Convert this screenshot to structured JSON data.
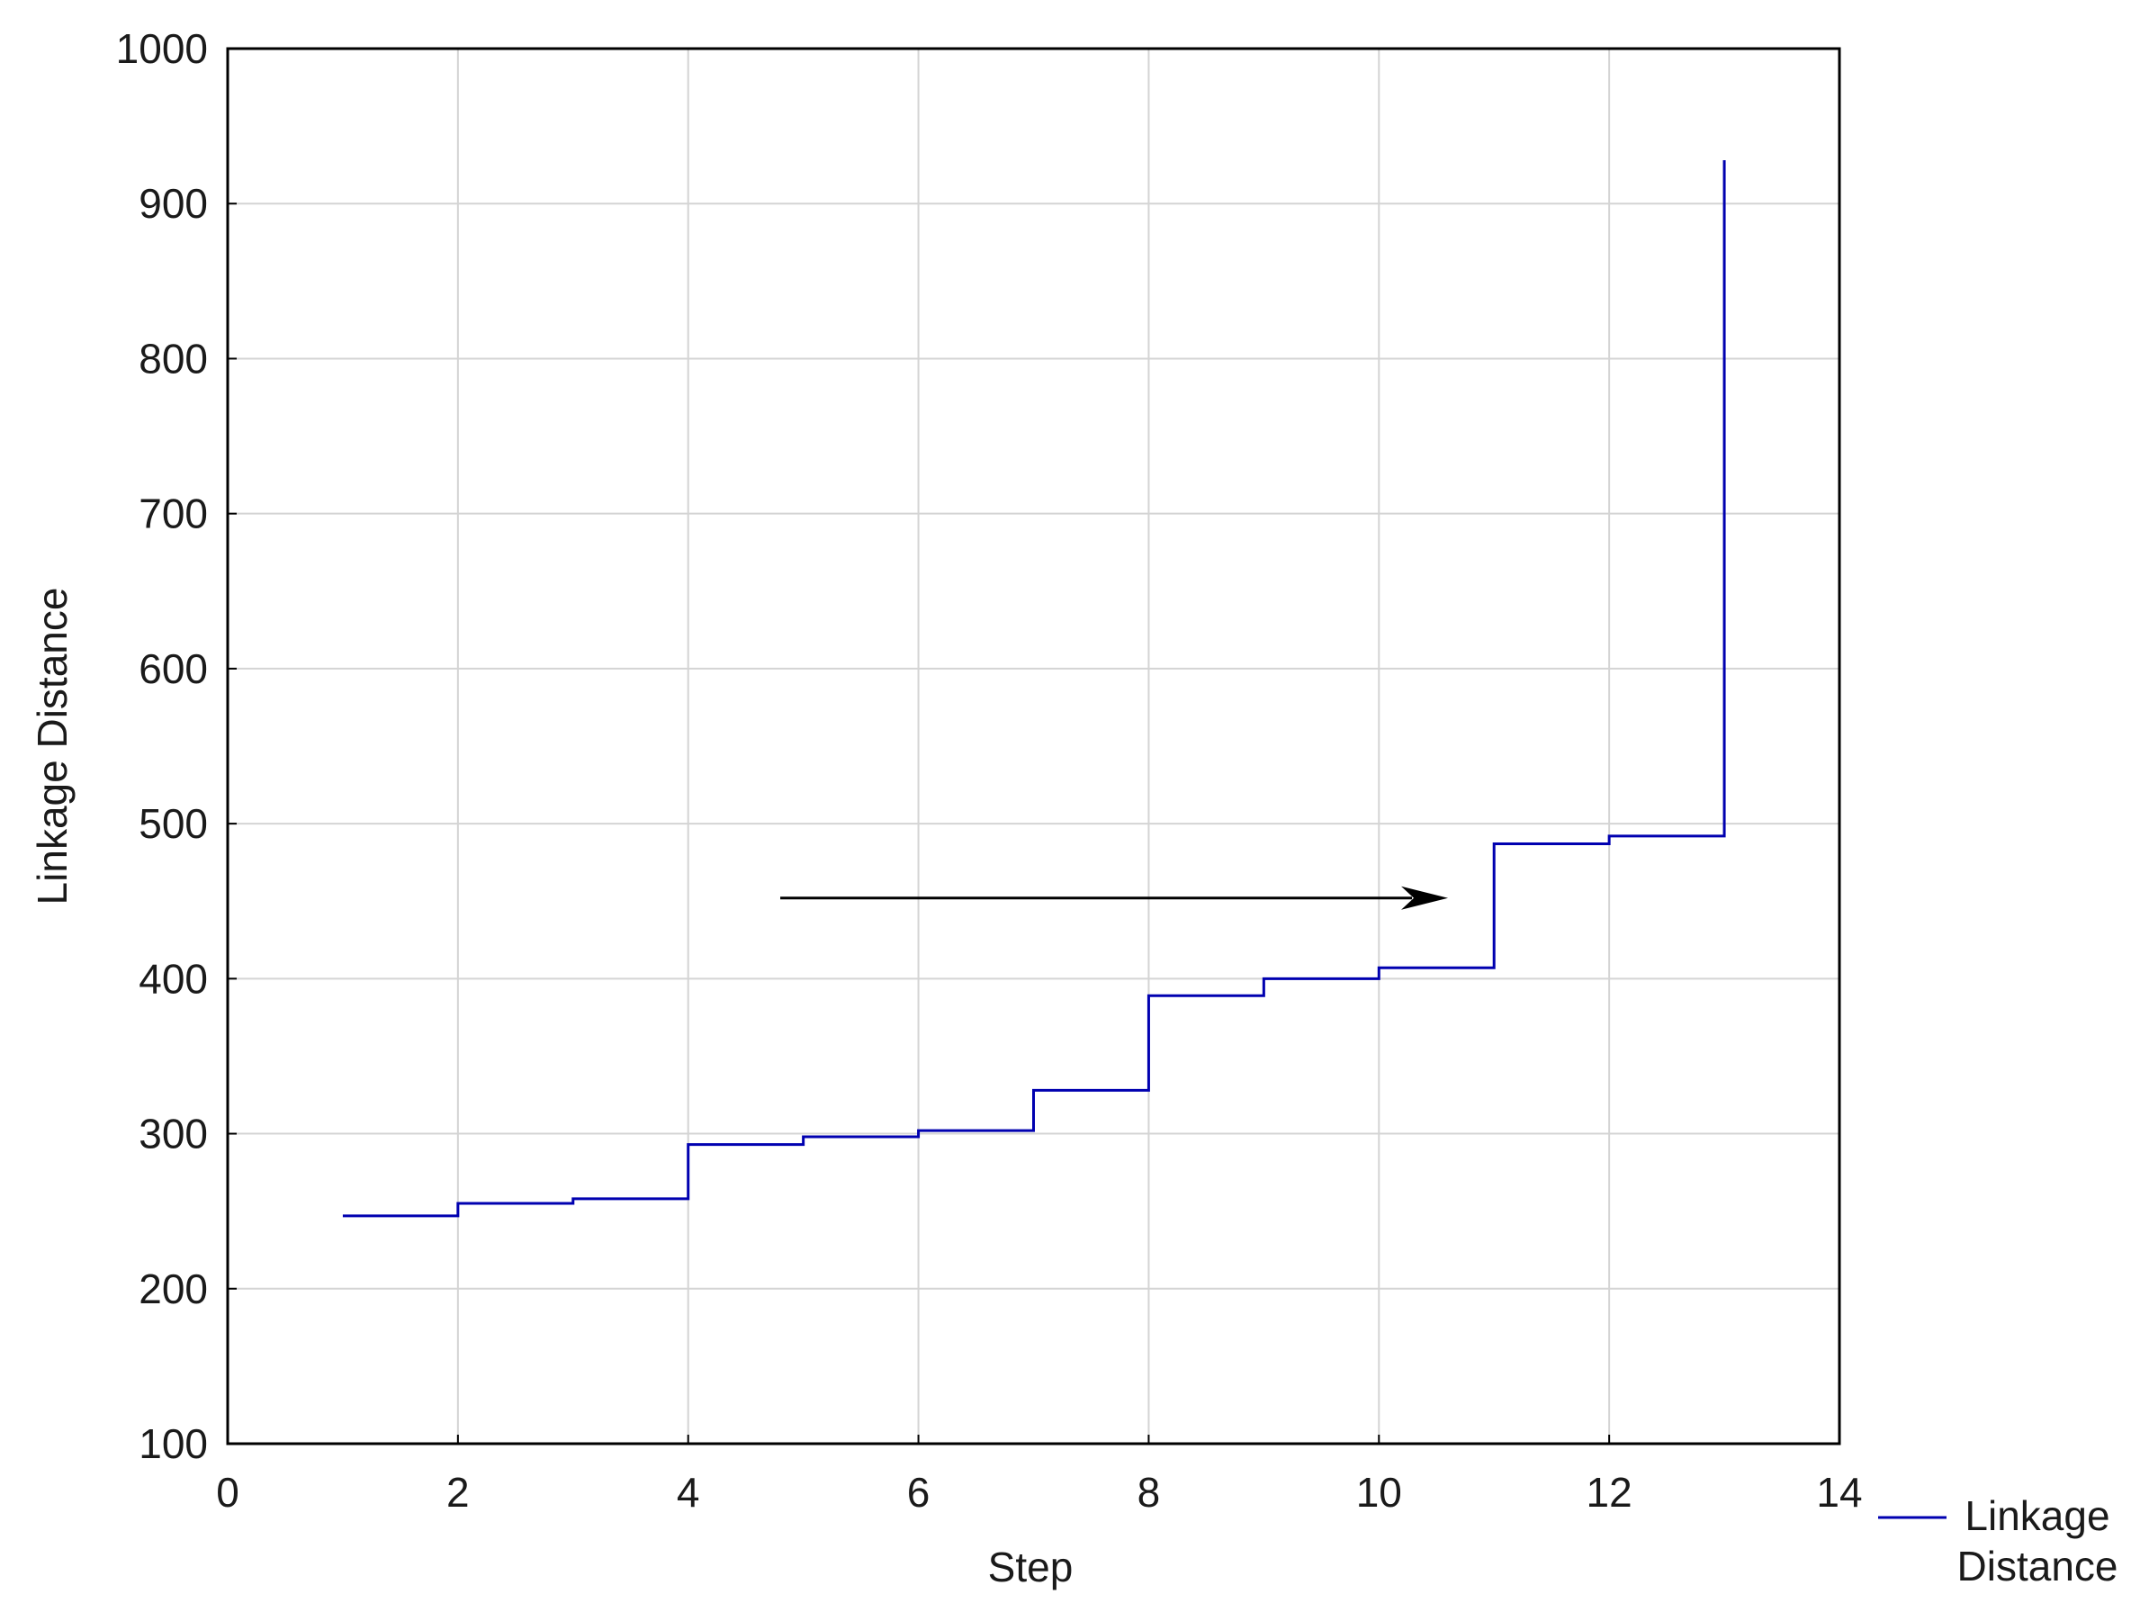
{
  "chart_data": {
    "type": "line",
    "step_style": "post",
    "xlabel": "Step",
    "ylabel": "Linkage Distance",
    "xlim": [
      0,
      14
    ],
    "ylim": [
      100,
      1000
    ],
    "xticks": [
      0,
      2,
      4,
      6,
      8,
      10,
      12,
      14
    ],
    "yticks": [
      100,
      200,
      300,
      400,
      500,
      600,
      700,
      800,
      900,
      1000
    ],
    "grid": true,
    "legend_position": "bottom-right outside",
    "colors": {
      "series": "#0000b0",
      "grid": "#d4d4d4",
      "axes": "#000000",
      "arrow": "#000000"
    },
    "series": [
      {
        "name": "Linkage Distance",
        "x": [
          1,
          2,
          3,
          4,
          5,
          6,
          7,
          8,
          9,
          10,
          11,
          12,
          13
        ],
        "values": [
          247,
          255,
          258,
          293,
          298,
          302,
          328,
          389,
          400,
          407,
          487,
          492,
          928
        ]
      }
    ],
    "annotations": [
      {
        "type": "arrow",
        "x_start": 4.8,
        "x_end": 10.6,
        "y": 452
      }
    ]
  }
}
